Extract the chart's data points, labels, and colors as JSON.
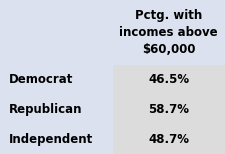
{
  "background_color": "#dce1ef",
  "table_bg_data": "#dcdcdc",
  "col_header": "Pctg. with\nincomes above\n$60,000",
  "rows": [
    [
      "Democrat",
      "46.5%"
    ],
    [
      "Republican",
      "58.7%"
    ],
    [
      "Independent",
      "48.7%"
    ]
  ],
  "row_label_color": "#000000",
  "data_color": "#000000",
  "header_color": "#000000",
  "font_size_header": 8.5,
  "font_size_data": 8.5,
  "fig_width": 2.25,
  "fig_height": 1.54,
  "dpi": 100
}
